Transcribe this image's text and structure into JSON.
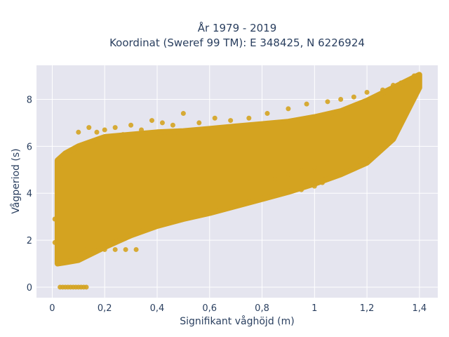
{
  "chart_data": {
    "type": "scatter",
    "title_line1": "År 1979 - 2019",
    "title_line2": "Koordinat (Sweref 99 TM): E 348425, N 6226924",
    "xlabel": "Signifikant våghöjd (m)",
    "ylabel": "Vågperiod (s)",
    "xlim": [
      -0.06,
      1.47
    ],
    "ylim": [
      -0.45,
      9.45
    ],
    "x_ticks": [
      0,
      0.2,
      0.4,
      0.6,
      0.8,
      1,
      1.2,
      1.4
    ],
    "x_tick_labels": [
      "0",
      "0,2",
      "0,4",
      "0,6",
      "0,8",
      "1",
      "1,2",
      "1,4"
    ],
    "y_ticks": [
      0,
      2,
      4,
      6,
      8
    ],
    "y_tick_labels": [
      "0",
      "2",
      "4",
      "6",
      "8"
    ],
    "grid": true,
    "marker_color": "#D4A320",
    "background_color": "#E5E5EF",
    "envelope": {
      "x": [
        0.02,
        0.05,
        0.1,
        0.2,
        0.3,
        0.4,
        0.5,
        0.6,
        0.7,
        0.8,
        0.9,
        1.0,
        1.1,
        1.2,
        1.3,
        1.4
      ],
      "y_lower": [
        1.0,
        1.05,
        1.15,
        1.7,
        2.2,
        2.6,
        2.9,
        3.15,
        3.45,
        3.75,
        4.05,
        4.4,
        4.8,
        5.3,
        6.3,
        8.5
      ],
      "y_upper": [
        5.4,
        5.7,
        6.0,
        6.4,
        6.5,
        6.6,
        6.65,
        6.75,
        6.85,
        6.95,
        7.05,
        7.25,
        7.5,
        7.95,
        8.5,
        9.05
      ]
    },
    "series": [
      {
        "values": [
          [
            0.03,
            0
          ],
          [
            0.04,
            0
          ],
          [
            0.05,
            0
          ],
          [
            0.06,
            0
          ],
          [
            0.07,
            0
          ],
          [
            0.08,
            0
          ],
          [
            0.09,
            0
          ],
          [
            0.1,
            0
          ],
          [
            0.11,
            0
          ],
          [
            0.12,
            0
          ],
          [
            0.13,
            0
          ],
          [
            0.01,
            1.9
          ],
          [
            0.01,
            2.9
          ],
          [
            0.02,
            3.7
          ],
          [
            0.02,
            4.4
          ],
          [
            0.03,
            5.2
          ],
          [
            0.1,
            6.6
          ],
          [
            0.14,
            6.8
          ],
          [
            0.17,
            6.6
          ],
          [
            0.2,
            6.7
          ],
          [
            0.24,
            6.8
          ],
          [
            0.27,
            6.5
          ],
          [
            0.3,
            6.9
          ],
          [
            0.34,
            6.7
          ],
          [
            0.38,
            7.1
          ],
          [
            0.42,
            7.0
          ],
          [
            0.46,
            6.9
          ],
          [
            0.5,
            7.4
          ],
          [
            0.56,
            7.0
          ],
          [
            0.62,
            7.2
          ],
          [
            0.68,
            7.1
          ],
          [
            0.75,
            7.2
          ],
          [
            0.82,
            7.4
          ],
          [
            0.9,
            7.6
          ],
          [
            0.97,
            7.8
          ],
          [
            1.05,
            7.9
          ],
          [
            1.1,
            8.0
          ],
          [
            1.15,
            8.1
          ],
          [
            1.2,
            8.3
          ],
          [
            1.26,
            8.4
          ],
          [
            1.3,
            8.6
          ],
          [
            1.33,
            8.7
          ],
          [
            1.38,
            9.0
          ],
          [
            1.4,
            9.0
          ],
          [
            0.12,
            1.6
          ],
          [
            0.16,
            1.6
          ],
          [
            0.2,
            1.6
          ],
          [
            0.24,
            1.6
          ],
          [
            0.28,
            1.6
          ],
          [
            0.32,
            1.6
          ],
          [
            0.7,
            3.5
          ],
          [
            0.75,
            3.65
          ],
          [
            0.8,
            3.8
          ],
          [
            0.85,
            3.95
          ],
          [
            0.9,
            4.05
          ],
          [
            0.95,
            4.15
          ],
          [
            1.0,
            4.3
          ],
          [
            1.03,
            4.45
          ],
          [
            0.85,
            4.6
          ],
          [
            0.9,
            4.8
          ],
          [
            0.95,
            4.95
          ],
          [
            1.0,
            5.1
          ],
          [
            1.05,
            5.25
          ]
        ]
      }
    ]
  }
}
